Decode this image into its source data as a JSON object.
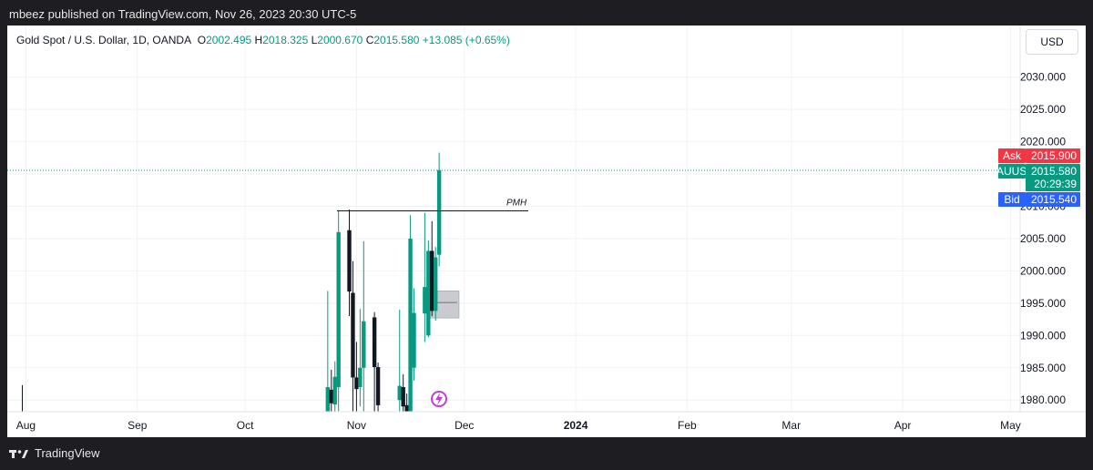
{
  "header": {
    "published": "mbeez published on TradingView.com, Nov 26, 2023 20:30 UTC-5"
  },
  "legend": {
    "symbol": "Gold Spot / U.S. Dollar, 1D, OANDA",
    "o_label": "O",
    "o_value": "2002.495",
    "h_label": "H",
    "h_value": "2018.325",
    "l_label": "L",
    "l_value": "2000.670",
    "c_label": "C",
    "c_value": "2015.580",
    "change": "+13.085 (+0.65%)"
  },
  "currency_button": "USD",
  "price_tags": {
    "ask_label": "Ask",
    "ask_value": "2015.900",
    "symbol_label": "XAUUSD",
    "last_value": "2015.580",
    "countdown": "20:29:39",
    "bid_label": "Bid",
    "bid_value": "2015.540"
  },
  "annotation": {
    "pmh_label": "PMH",
    "pmh_level": 2009.3
  },
  "footer": {
    "brand": "TradingView"
  },
  "colors": {
    "up": "#089981",
    "down": "#131722",
    "ask": "#f23645",
    "bid": "#2962ff",
    "last": "#089981"
  },
  "chart_data": {
    "type": "candlestick",
    "y_ticks": [
      "1980.000",
      "1985.000",
      "1990.000",
      "1995.000",
      "2000.000",
      "2005.000",
      "2010.000",
      "2015.000",
      "2020.000",
      "2025.000",
      "2030.000"
    ],
    "x_ticks": [
      "Aug",
      "Sep",
      "Oct",
      "Nov",
      "Dec",
      "2024",
      "Feb",
      "Mar",
      "Apr",
      "May"
    ],
    "last_price": 2015.58,
    "box": {
      "from": "2023-11-22",
      "to": "2023-11-27",
      "high": 1996.9,
      "low": 1992.7
    },
    "candles": [
      {
        "d": "2023-07-31",
        "o": 1978,
        "h": 1982.3,
        "l": 1976,
        "c": 1977
      },
      {
        "d": "2023-10-24",
        "o": 1970,
        "h": 1996.9,
        "l": 1966,
        "c": 1982
      },
      {
        "d": "2023-10-25",
        "o": 1981.6,
        "h": 1984.7,
        "l": 1978,
        "c": 1979.5
      },
      {
        "d": "2023-10-26",
        "o": 1979.3,
        "h": 1986.0,
        "l": 1974,
        "c": 1983.6
      },
      {
        "d": "2023-10-27",
        "o": 1982,
        "h": 2009.4,
        "l": 1978,
        "c": 2006.0
      },
      {
        "d": "2023-10-30",
        "o": 2006.3,
        "h": 2009.5,
        "l": 1993,
        "c": 1996.8
      },
      {
        "d": "2023-10-31",
        "o": 1996.6,
        "h": 2001.5,
        "l": 1977,
        "c": 1983.5
      },
      {
        "d": "2023-11-01",
        "o": 1983.5,
        "h": 1989.0,
        "l": 1978,
        "c": 1981.7
      },
      {
        "d": "2023-11-02",
        "o": 1982,
        "h": 1994.1,
        "l": 1979,
        "c": 1985.0
      },
      {
        "d": "2023-11-03",
        "o": 1985,
        "h": 2004.6,
        "l": 1974,
        "c": 1992.2
      },
      {
        "d": "2023-11-06",
        "o": 1992.8,
        "h": 1993.6,
        "l": 1974,
        "c": 1985.1
      },
      {
        "d": "2023-11-07",
        "o": 1985.1,
        "h": 1985.8,
        "l": 1978,
        "c": 1979.2
      },
      {
        "d": "2023-11-13",
        "o": 1980,
        "h": 1994.0,
        "l": 1974,
        "c": 1982.2
      },
      {
        "d": "2023-11-14",
        "o": 1982,
        "h": 1984.0,
        "l": 1978,
        "c": 1979.0
      },
      {
        "d": "2023-11-15",
        "o": 1979.2,
        "h": 1981.0,
        "l": 1970,
        "c": 1972
      },
      {
        "d": "2023-11-16",
        "o": 1974,
        "h": 2008.6,
        "l": 1974,
        "c": 2005.0
      },
      {
        "d": "2023-11-17",
        "o": 1985,
        "h": 1997.3,
        "l": 1983,
        "c": 1993.5
      },
      {
        "d": "2023-11-20",
        "o": 1993.4,
        "h": 2009.0,
        "l": 1989.0,
        "c": 1997.5
      },
      {
        "d": "2023-11-21",
        "o": 1990.0,
        "h": 2004.7,
        "l": 1989.7,
        "c": 2003.1
      },
      {
        "d": "2023-11-22",
        "o": 2003.1,
        "h": 2007.7,
        "l": 1993.0,
        "c": 1993.8
      },
      {
        "d": "2023-11-23",
        "o": 1993.8,
        "h": 2003.7,
        "l": 1992.3,
        "c": 2002.1
      },
      {
        "d": "2023-11-24",
        "o": 2002.5,
        "h": 2018.3,
        "l": 2000.7,
        "c": 2015.6
      }
    ]
  }
}
